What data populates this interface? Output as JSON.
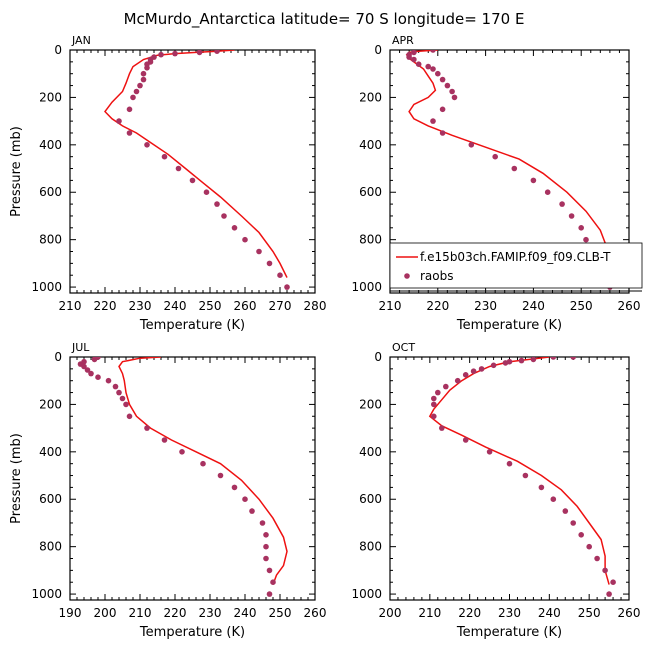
{
  "title": "McMurdo_Antarctica  latitude= 70 S longitude= 170 E",
  "colors": {
    "model_line": "#ee1111",
    "obs_dot": "#a83260",
    "frame": "#000000"
  },
  "legend": {
    "model_label": "f.e15b03ch.FAMIP.f09_f09.CLB-T",
    "obs_label": "raobs"
  },
  "chart_data": [
    {
      "type": "line",
      "panel": "JAN",
      "xlabel": "Temperature (K)",
      "ylabel": "Pressure (mb)",
      "xlim": [
        210,
        280
      ],
      "ylim": [
        1025,
        0
      ],
      "xticks": [
        210,
        220,
        230,
        240,
        250,
        260,
        270,
        280
      ],
      "yticks": [
        0,
        200,
        400,
        600,
        800,
        1000
      ],
      "series": [
        {
          "name": "model",
          "kind": "line",
          "points": [
            [
              257,
              0
            ],
            [
              252,
              5
            ],
            [
              246,
              10
            ],
            [
              240,
              15
            ],
            [
              235,
              22
            ],
            [
              231,
              40
            ],
            [
              228,
              70
            ],
            [
              227,
              100
            ],
            [
              226,
              140
            ],
            [
              225,
              175
            ],
            [
              222,
              220
            ],
            [
              220,
              260
            ],
            [
              222,
              290
            ],
            [
              225,
              320
            ],
            [
              229,
              350
            ],
            [
              233,
              390
            ],
            [
              238,
              440
            ],
            [
              243,
              500
            ],
            [
              248,
              560
            ],
            [
              253,
              620
            ],
            [
              259,
              700
            ],
            [
              264,
              770
            ],
            [
              268,
              850
            ],
            [
              270,
              900
            ],
            [
              272,
              960
            ]
          ]
        },
        {
          "name": "raobs",
          "kind": "scatter",
          "points": [
            [
              252,
              5
            ],
            [
              247,
              10
            ],
            [
              240,
              15
            ],
            [
              236,
              20
            ],
            [
              234,
              30
            ],
            [
              233,
              40
            ],
            [
              233,
              50
            ],
            [
              232,
              60
            ],
            [
              232,
              75
            ],
            [
              231,
              100
            ],
            [
              231,
              125
            ],
            [
              230,
              150
            ],
            [
              229,
              175
            ],
            [
              228,
              200
            ],
            [
              227,
              250
            ],
            [
              224,
              300
            ],
            [
              227,
              350
            ],
            [
              232,
              400
            ],
            [
              237,
              450
            ],
            [
              241,
              500
            ],
            [
              245,
              550
            ],
            [
              249,
              600
            ],
            [
              252,
              650
            ],
            [
              254,
              700
            ],
            [
              257,
              750
            ],
            [
              260,
              800
            ],
            [
              264,
              850
            ],
            [
              267,
              900
            ],
            [
              270,
              950
            ],
            [
              272,
              1000
            ]
          ]
        }
      ]
    },
    {
      "type": "line",
      "panel": "APR",
      "xlabel": "Temperature (K)",
      "ylabel": "",
      "xlim": [
        210,
        260
      ],
      "ylim": [
        1025,
        0
      ],
      "xticks": [
        210,
        220,
        230,
        240,
        250,
        260
      ],
      "yticks": [
        0,
        200,
        400,
        600,
        800,
        1000
      ],
      "series": [
        {
          "name": "model",
          "kind": "line",
          "points": [
            [
              220,
              0
            ],
            [
              216,
              5
            ],
            [
              214,
              10
            ],
            [
              213.5,
              20
            ],
            [
              214,
              35
            ],
            [
              215,
              50
            ],
            [
              217,
              80
            ],
            [
              218,
              110
            ],
            [
              219,
              140
            ],
            [
              219.5,
              170
            ],
            [
              218,
              200
            ],
            [
              215,
              230
            ],
            [
              214,
              260
            ],
            [
              215,
              290
            ],
            [
              218,
              320
            ],
            [
              223,
              360
            ],
            [
              230,
              410
            ],
            [
              237,
              460
            ],
            [
              242,
              520
            ],
            [
              247,
              600
            ],
            [
              251,
              680
            ],
            [
              254,
              760
            ],
            [
              255.5,
              840
            ],
            [
              256,
              900
            ],
            [
              259,
              960
            ]
          ]
        },
        {
          "name": "raobs",
          "kind": "scatter",
          "points": [
            [
              219,
              0
            ],
            [
              215,
              10
            ],
            [
              214,
              20
            ],
            [
              214,
              30
            ],
            [
              215,
              40
            ],
            [
              216,
              60
            ],
            [
              218,
              70
            ],
            [
              219,
              80
            ],
            [
              220,
              100
            ],
            [
              221,
              125
            ],
            [
              222,
              150
            ],
            [
              223,
              175
            ],
            [
              223.5,
              200
            ],
            [
              221,
              250
            ],
            [
              219,
              300
            ],
            [
              221,
              350
            ],
            [
              227,
              400
            ],
            [
              232,
              450
            ],
            [
              236,
              500
            ],
            [
              240,
              550
            ],
            [
              243,
              600
            ],
            [
              246,
              650
            ],
            [
              248,
              700
            ],
            [
              250,
              750
            ],
            [
              251,
              800
            ],
            [
              252,
              850
            ],
            [
              253,
              900
            ],
            [
              254,
              950
            ],
            [
              256,
              1000
            ]
          ]
        }
      ]
    },
    {
      "type": "line",
      "panel": "JUL",
      "xlabel": "Temperature (K)",
      "ylabel": "Pressure (mb)",
      "xlim": [
        190,
        260
      ],
      "ylim": [
        1025,
        0
      ],
      "xticks": [
        190,
        200,
        210,
        220,
        230,
        240,
        250,
        260
      ],
      "yticks": [
        0,
        200,
        400,
        600,
        800,
        1000
      ],
      "series": [
        {
          "name": "model",
          "kind": "line",
          "points": [
            [
              216,
              0
            ],
            [
              210,
              5
            ],
            [
              205,
              20
            ],
            [
              204,
              40
            ],
            [
              205,
              70
            ],
            [
              205.5,
              100
            ],
            [
              206,
              150
            ],
            [
              207,
              200
            ],
            [
              209,
              250
            ],
            [
              213,
              300
            ],
            [
              219,
              350
            ],
            [
              226,
              400
            ],
            [
              233,
              450
            ],
            [
              239,
              520
            ],
            [
              244,
              600
            ],
            [
              248,
              680
            ],
            [
              251,
              760
            ],
            [
              252,
              820
            ],
            [
              251,
              880
            ],
            [
              249,
              920
            ],
            [
              248,
              960
            ]
          ]
        },
        {
          "name": "raobs",
          "kind": "scatter",
          "points": [
            [
              198,
              0
            ],
            [
              197,
              10
            ],
            [
              194,
              20
            ],
            [
              193,
              30
            ],
            [
              194,
              40
            ],
            [
              195,
              55
            ],
            [
              196,
              70
            ],
            [
              198,
              85
            ],
            [
              201,
              100
            ],
            [
              203,
              125
            ],
            [
              204,
              150
            ],
            [
              205,
              175
            ],
            [
              206,
              200
            ],
            [
              207,
              250
            ],
            [
              212,
              300
            ],
            [
              217,
              350
            ],
            [
              222,
              400
            ],
            [
              228,
              450
            ],
            [
              233,
              500
            ],
            [
              237,
              550
            ],
            [
              240,
              600
            ],
            [
              242,
              650
            ],
            [
              245,
              700
            ],
            [
              246,
              750
            ],
            [
              246,
              800
            ],
            [
              246,
              850
            ],
            [
              247,
              900
            ],
            [
              248,
              950
            ],
            [
              247,
              1000
            ]
          ]
        }
      ]
    },
    {
      "type": "line",
      "panel": "OCT",
      "xlabel": "Temperature (K)",
      "ylabel": "",
      "xlim": [
        200,
        260
      ],
      "ylim": [
        1025,
        0
      ],
      "xticks": [
        200,
        210,
        220,
        230,
        240,
        250,
        260
      ],
      "yticks": [
        0,
        200,
        400,
        600,
        800,
        1000
      ],
      "series": [
        {
          "name": "model",
          "kind": "line",
          "points": [
            [
              240,
              0
            ],
            [
              235,
              10
            ],
            [
              230,
              20
            ],
            [
              225,
              40
            ],
            [
              221,
              70
            ],
            [
              218,
              100
            ],
            [
              215,
              140
            ],
            [
              213,
              180
            ],
            [
              211,
              220
            ],
            [
              210,
              250
            ],
            [
              213,
              290
            ],
            [
              218,
              330
            ],
            [
              224,
              380
            ],
            [
              232,
              440
            ],
            [
              238,
              500
            ],
            [
              243,
              560
            ],
            [
              247,
              630
            ],
            [
              250,
              700
            ],
            [
              253,
              770
            ],
            [
              254,
              840
            ],
            [
              254,
              900
            ],
            [
              255,
              960
            ]
          ]
        },
        {
          "name": "raobs",
          "kind": "scatter",
          "points": [
            [
              246,
              0
            ],
            [
              241,
              0
            ],
            [
              236,
              10
            ],
            [
              233,
              15
            ],
            [
              230,
              20
            ],
            [
              229,
              25
            ],
            [
              226,
              35
            ],
            [
              223,
              50
            ],
            [
              221,
              60
            ],
            [
              219,
              75
            ],
            [
              217,
              100
            ],
            [
              214,
              125
            ],
            [
              212,
              150
            ],
            [
              211,
              175
            ],
            [
              211,
              200
            ],
            [
              211,
              250
            ],
            [
              213,
              300
            ],
            [
              219,
              350
            ],
            [
              225,
              400
            ],
            [
              230,
              450
            ],
            [
              234,
              500
            ],
            [
              238,
              550
            ],
            [
              241,
              600
            ],
            [
              244,
              650
            ],
            [
              246,
              700
            ],
            [
              248,
              750
            ],
            [
              250,
              800
            ],
            [
              252,
              850
            ],
            [
              254,
              900
            ],
            [
              256,
              950
            ],
            [
              255,
              1000
            ]
          ]
        }
      ]
    }
  ]
}
